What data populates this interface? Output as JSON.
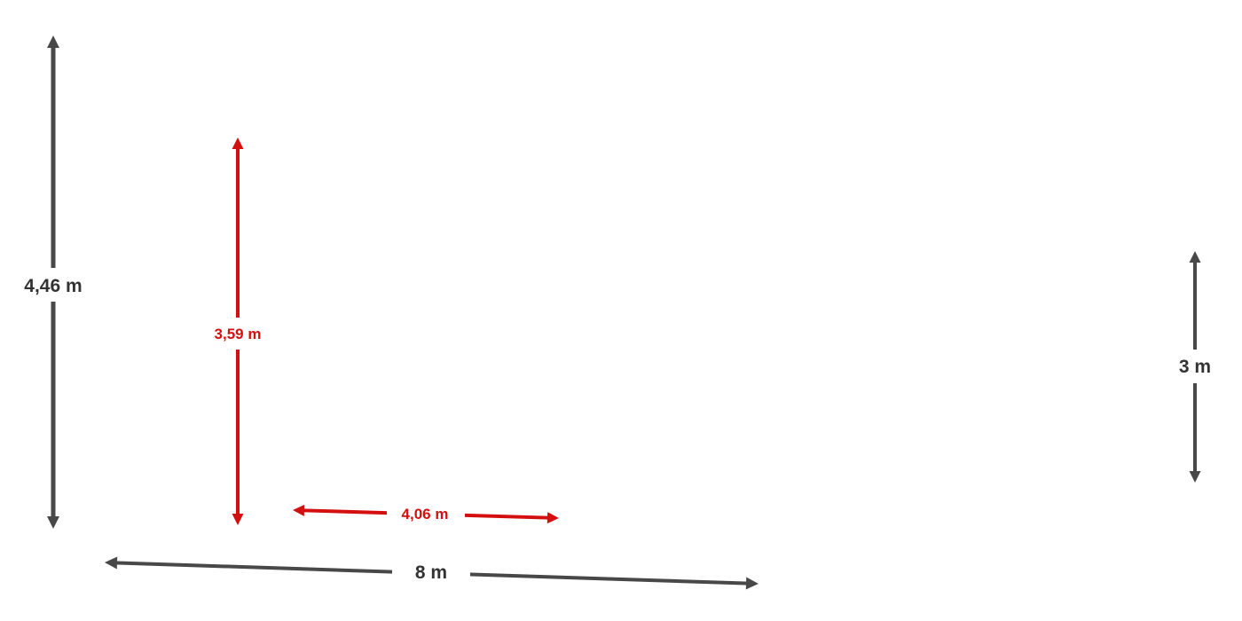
{
  "colors": {
    "primary": "#484848",
    "highlight": "#d40f0f"
  },
  "dimensions": [
    {
      "label": "4,46 m",
      "color": "primary"
    },
    {
      "label": "3,59 m",
      "color": "highlight"
    },
    {
      "label": "4,06 m",
      "color": "highlight"
    },
    {
      "label": "8 m",
      "color": "primary"
    },
    {
      "label": "3 m",
      "color": "primary"
    }
  ]
}
